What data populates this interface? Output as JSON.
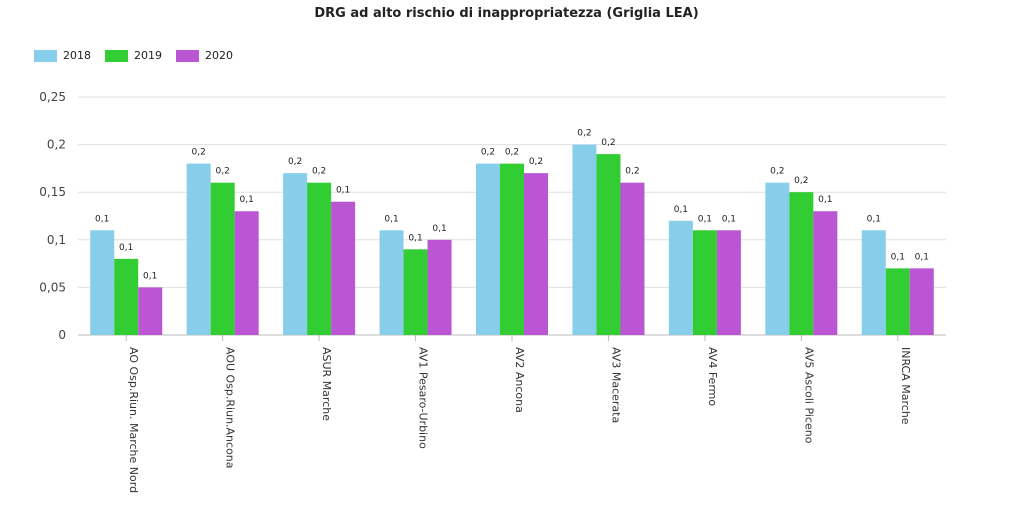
{
  "chart_data": {
    "type": "bar",
    "title": "DRG ad alto rischio di inappropriatezza (Griglia LEA)",
    "categories": [
      "AO Osp.Riun. Marche Nord",
      "AOU Osp.Riun.Ancona",
      "ASUR Marche",
      "AV1 Pesaro-Urbino",
      "AV2 Ancona",
      "AV3 Macerata",
      "AV4 Fermo",
      "AV5 Ascoli Piceno",
      "INRCA Marche"
    ],
    "series": [
      {
        "name": "2018",
        "color": "#87ceeb",
        "values": [
          0.11,
          0.18,
          0.17,
          0.11,
          0.18,
          0.2,
          0.12,
          0.16,
          0.11
        ],
        "labels": [
          "0,1",
          "0,2",
          "0,2",
          "0,1",
          "0,2",
          "0,2",
          "0,1",
          "0,2",
          "0,1"
        ]
      },
      {
        "name": "2019",
        "color": "#32cd32",
        "values": [
          0.08,
          0.16,
          0.16,
          0.09,
          0.18,
          0.19,
          0.11,
          0.15,
          0.07
        ],
        "labels": [
          "0,1",
          "0,2",
          "0,2",
          "0,1",
          "0,2",
          "0,2",
          "0,1",
          "0,2",
          "0,1"
        ]
      },
      {
        "name": "2020",
        "color": "#ba55d3",
        "values": [
          0.05,
          0.13,
          0.14,
          0.1,
          0.17,
          0.16,
          0.11,
          0.13,
          0.07
        ],
        "labels": [
          "0,1",
          "0,1",
          "0,1",
          "0,1",
          "0,2",
          "0,2",
          "0,1",
          "0,1",
          "0,1"
        ]
      }
    ],
    "ylim": [
      0,
      0.25
    ],
    "yticks": [
      0,
      0.05,
      0.1,
      0.15,
      0.2,
      0.25
    ],
    "ytick_labels": [
      "0",
      "0,05",
      "0,1",
      "0,15",
      "0,2",
      "0,25"
    ],
    "grid": true,
    "legend_position": "top-left",
    "xlabel": "",
    "ylabel": ""
  }
}
